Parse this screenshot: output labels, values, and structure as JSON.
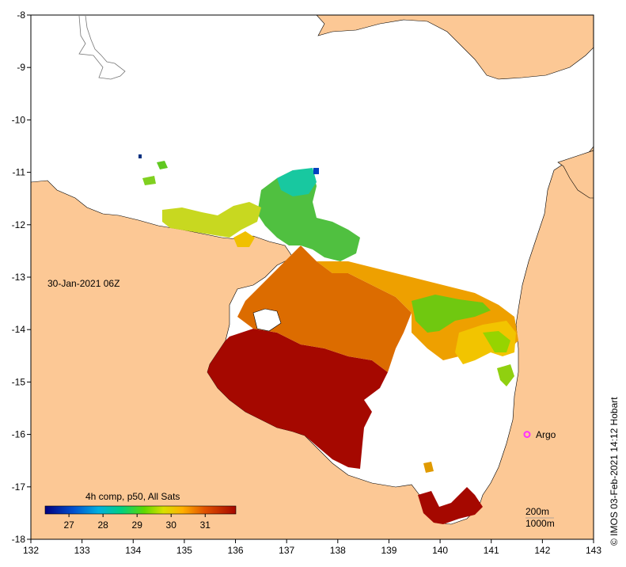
{
  "timestamp_label": "30-Jan-2021 06Z",
  "colorbar": {
    "title": "4h comp, p50, All Sats",
    "ticks": [
      "27",
      "28",
      "29",
      "30",
      "31"
    ],
    "range": [
      26.3,
      31.9
    ],
    "tick_values": [
      27,
      28,
      29,
      30,
      31
    ]
  },
  "axes": {
    "lon_ticks": [
      "132",
      "133",
      "134",
      "135",
      "136",
      "137",
      "138",
      "139",
      "140",
      "141",
      "142",
      "143"
    ],
    "lat_ticks": [
      "-8",
      "-9",
      "-10",
      "-11",
      "-12",
      "-13",
      "-14",
      "-15",
      "-16",
      "-17",
      "-18"
    ],
    "lon_range": [
      132,
      143
    ],
    "lat_range": [
      -18,
      -8
    ]
  },
  "argo": {
    "label": "Argo",
    "lon": 141.7,
    "lat": -16.0,
    "color": "#ff33ff"
  },
  "depth_contours": {
    "c200": "200m",
    "c1000": "1000m"
  },
  "credit": "© IMOS 03-Feb-2021 14:12 Hobart",
  "colors": {
    "land": "#fcc895",
    "sea": "#ffffff",
    "sst_hot": "#a50800",
    "sst_orange": "#e67a00",
    "sst_yellow": "#f2c400",
    "sst_green": "#7cd400",
    "sst_cyan": "#10c8a0"
  }
}
